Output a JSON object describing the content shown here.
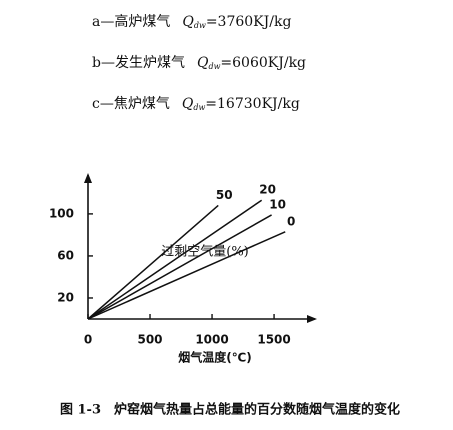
{
  "chart_data": {
    "type": "line",
    "notes": [
      {
        "label": "a—高炉煤气",
        "q": "Q",
        "sub": "dw",
        "value": "=3760KJ/kg"
      },
      {
        "label": "b—发生炉煤气",
        "q": "Q",
        "sub": "dw",
        "value": "=6060KJ/kg"
      },
      {
        "label": "c—焦炉煤气",
        "q": "Q",
        "sub": "dw",
        "value": "=16730KJ/kg"
      }
    ],
    "annotation": "过剩空气量(%)",
    "x_label": "烟气温度(℃)",
    "caption": "图 1-3　炉窑烟气热量占总能量的百分数随烟气温度的变化",
    "xlim": [
      0,
      1830
    ],
    "ylim": [
      0,
      137
    ],
    "xticks": [
      0,
      500,
      1000,
      1500
    ],
    "yticks": [
      20,
      60,
      100
    ],
    "series": [
      {
        "name": "50",
        "color": "#111111",
        "x": [
          0,
          1050
        ],
        "values": [
          0,
          108
        ]
      },
      {
        "name": "20",
        "color": "#111111",
        "x": [
          0,
          1400
        ],
        "values": [
          0,
          113
        ]
      },
      {
        "name": "10",
        "color": "#111111",
        "x": [
          0,
          1480
        ],
        "values": [
          0,
          99
        ]
      },
      {
        "name": "0",
        "color": "#111111",
        "x": [
          0,
          1590
        ],
        "values": [
          0,
          83
        ]
      }
    ]
  }
}
